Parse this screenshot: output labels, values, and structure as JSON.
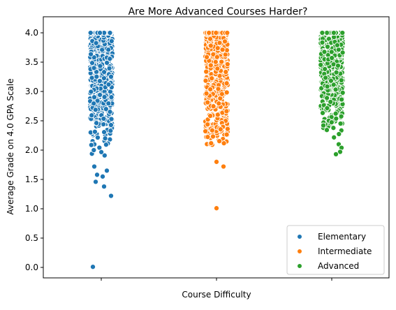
{
  "chart_data": {
    "type": "scatter",
    "subtype": "stripplot",
    "title": "Are More Advanced Courses Harder?",
    "xlabel": "Course Difficulty",
    "ylabel": "Average Grade on 4.0 GPA Scale",
    "ylim": [
      -0.2,
      4.2
    ],
    "yticks": [
      0.0,
      0.5,
      1.0,
      1.5,
      2.0,
      2.5,
      3.0,
      3.5,
      4.0
    ],
    "ytick_labels": [
      "0.0",
      "0.5",
      "1.0",
      "1.5",
      "2.0",
      "2.5",
      "3.0",
      "3.5",
      "4.0"
    ],
    "grid": false,
    "legend_position": "bottom-right",
    "x_tick_labels_shown": false,
    "series": [
      {
        "name": "Elementary",
        "color": "#1f77b4",
        "dense_range": [
          1.85,
          4.0
        ],
        "outliers": [
          {
            "x": -0.05,
            "y": 1.72
          },
          {
            "x": 0.04,
            "y": 1.65
          },
          {
            "x": -0.03,
            "y": 1.58
          },
          {
            "x": 0.01,
            "y": 1.55
          },
          {
            "x": -0.04,
            "y": 1.46
          },
          {
            "x": 0.02,
            "y": 1.38
          },
          {
            "x": 0.07,
            "y": 1.22
          },
          {
            "x": -0.06,
            "y": 0.01
          }
        ]
      },
      {
        "name": "Intermediate",
        "color": "#ff7f0e",
        "dense_range": [
          2.0,
          4.0
        ],
        "outliers": [
          {
            "x": 0.0,
            "y": 1.8
          },
          {
            "x": 0.05,
            "y": 1.72
          },
          {
            "x": 0.0,
            "y": 1.01
          }
        ]
      },
      {
        "name": "Advanced",
        "color": "#2ca02c",
        "dense_range": [
          2.2,
          4.0
        ],
        "outliers": [
          {
            "x": 0.05,
            "y": 2.1
          },
          {
            "x": 0.07,
            "y": 2.04
          },
          {
            "x": 0.06,
            "y": 1.97
          },
          {
            "x": 0.03,
            "y": 1.93
          }
        ]
      }
    ]
  }
}
